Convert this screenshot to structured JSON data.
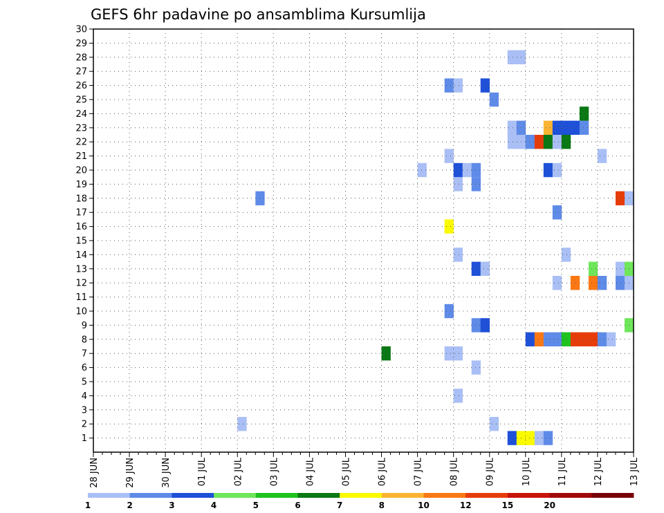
{
  "chart_data": {
    "type": "heatmap",
    "title": "GEFS 6hr padavine po ansamblima Kursumlija",
    "xlabel": "",
    "ylabel": "",
    "x_tick_labels": [
      "28 JUN",
      "29 JUN",
      "30 JUN",
      "01 JUL",
      "02 JUL",
      "03 JUL",
      "04 JUL",
      "05 JUL",
      "06 JUL",
      "07 JUL",
      "08 JUL",
      "09 JUL",
      "10 JUL",
      "11 JUL",
      "12 JUL",
      "13 JUL"
    ],
    "y_tick_labels": [
      "1",
      "2",
      "3",
      "4",
      "5",
      "6",
      "7",
      "8",
      "9",
      "10",
      "11",
      "12",
      "13",
      "14",
      "15",
      "16",
      "17",
      "18",
      "19",
      "20",
      "21",
      "22",
      "23",
      "24",
      "25",
      "26",
      "27",
      "28",
      "29",
      "30"
    ],
    "ylim": [
      0,
      30
    ],
    "x_steps_per_day": 4,
    "x_range_steps": [
      0,
      60
    ],
    "grid": true,
    "legend_position": "bottom",
    "colorbar": {
      "labels": [
        "1",
        "2",
        "3",
        "4",
        "5",
        "6",
        "7",
        "8",
        "10",
        "12",
        "15",
        "20"
      ],
      "colors": [
        "#aabff5",
        "#5f8be8",
        "#1e50d8",
        "#6ee65a",
        "#1ec31e",
        "#0a7814",
        "#fafa00",
        "#fab432",
        "#fa7814",
        "#e63c0a",
        "#c8140a",
        "#a00a0a",
        "#78000a"
      ]
    },
    "cells": [
      {
        "m": 1,
        "s": 46,
        "c": 2
      },
      {
        "m": 1,
        "s": 47,
        "c": 6
      },
      {
        "m": 1,
        "s": 48,
        "c": 6
      },
      {
        "m": 1,
        "s": 49,
        "c": 0
      },
      {
        "m": 1,
        "s": 50,
        "c": 1
      },
      {
        "m": 2,
        "s": 16,
        "c": 0
      },
      {
        "m": 2,
        "s": 44,
        "c": 0
      },
      {
        "m": 4,
        "s": 40,
        "c": 0
      },
      {
        "m": 6,
        "s": 42,
        "c": 0
      },
      {
        "m": 7,
        "s": 32,
        "c": 5
      },
      {
        "m": 7,
        "s": 39,
        "c": 0
      },
      {
        "m": 7,
        "s": 40,
        "c": 0
      },
      {
        "m": 8,
        "s": 48,
        "c": 2
      },
      {
        "m": 8,
        "s": 49,
        "c": 8
      },
      {
        "m": 8,
        "s": 50,
        "c": 1
      },
      {
        "m": 8,
        "s": 51,
        "c": 1
      },
      {
        "m": 8,
        "s": 52,
        "c": 4
      },
      {
        "m": 8,
        "s": 53,
        "c": 9
      },
      {
        "m": 8,
        "s": 54,
        "c": 9
      },
      {
        "m": 8,
        "s": 55,
        "c": 9
      },
      {
        "m": 8,
        "s": 56,
        "c": 1
      },
      {
        "m": 8,
        "s": 57,
        "c": 0
      },
      {
        "m": 9,
        "s": 42,
        "c": 1
      },
      {
        "m": 9,
        "s": 43,
        "c": 2
      },
      {
        "m": 9,
        "s": 59,
        "c": 3
      },
      {
        "m": 10,
        "s": 39,
        "c": 1
      },
      {
        "m": 12,
        "s": 51,
        "c": 0
      },
      {
        "m": 12,
        "s": 53,
        "c": 8
      },
      {
        "m": 12,
        "s": 55,
        "c": 8
      },
      {
        "m": 12,
        "s": 56,
        "c": 1
      },
      {
        "m": 12,
        "s": 58,
        "c": 1
      },
      {
        "m": 12,
        "s": 59,
        "c": 0
      },
      {
        "m": 13,
        "s": 42,
        "c": 2
      },
      {
        "m": 13,
        "s": 43,
        "c": 0
      },
      {
        "m": 13,
        "s": 55,
        "c": 3
      },
      {
        "m": 13,
        "s": 58,
        "c": 0
      },
      {
        "m": 13,
        "s": 59,
        "c": 3
      },
      {
        "m": 14,
        "s": 40,
        "c": 0
      },
      {
        "m": 14,
        "s": 52,
        "c": 0
      },
      {
        "m": 16,
        "s": 39,
        "c": 6
      },
      {
        "m": 17,
        "s": 51,
        "c": 1
      },
      {
        "m": 18,
        "s": 18,
        "c": 1
      },
      {
        "m": 18,
        "s": 58,
        "c": 9
      },
      {
        "m": 18,
        "s": 59,
        "c": 0
      },
      {
        "m": 19,
        "s": 40,
        "c": 0
      },
      {
        "m": 19,
        "s": 42,
        "c": 1
      },
      {
        "m": 20,
        "s": 36,
        "c": 0
      },
      {
        "m": 20,
        "s": 40,
        "c": 2
      },
      {
        "m": 20,
        "s": 41,
        "c": 0
      },
      {
        "m": 20,
        "s": 42,
        "c": 1
      },
      {
        "m": 20,
        "s": 50,
        "c": 2
      },
      {
        "m": 20,
        "s": 51,
        "c": 0
      },
      {
        "m": 21,
        "s": 39,
        "c": 0
      },
      {
        "m": 21,
        "s": 56,
        "c": 0
      },
      {
        "m": 22,
        "s": 46,
        "c": 0
      },
      {
        "m": 22,
        "s": 47,
        "c": 0
      },
      {
        "m": 22,
        "s": 48,
        "c": 1
      },
      {
        "m": 22,
        "s": 49,
        "c": 9
      },
      {
        "m": 22,
        "s": 50,
        "c": 5
      },
      {
        "m": 22,
        "s": 51,
        "c": 0
      },
      {
        "m": 22,
        "s": 52,
        "c": 5
      },
      {
        "m": 23,
        "s": 46,
        "c": 0
      },
      {
        "m": 23,
        "s": 47,
        "c": 1
      },
      {
        "m": 23,
        "s": 50,
        "c": 7
      },
      {
        "m": 23,
        "s": 51,
        "c": 2
      },
      {
        "m": 23,
        "s": 52,
        "c": 2
      },
      {
        "m": 23,
        "s": 53,
        "c": 2
      },
      {
        "m": 23,
        "s": 54,
        "c": 1
      },
      {
        "m": 24,
        "s": 54,
        "c": 5
      },
      {
        "m": 25,
        "s": 44,
        "c": 1
      },
      {
        "m": 26,
        "s": 39,
        "c": 1
      },
      {
        "m": 26,
        "s": 40,
        "c": 0
      },
      {
        "m": 26,
        "s": 43,
        "c": 2
      },
      {
        "m": 28,
        "s": 46,
        "c": 0
      },
      {
        "m": 28,
        "s": 47,
        "c": 0
      }
    ]
  }
}
